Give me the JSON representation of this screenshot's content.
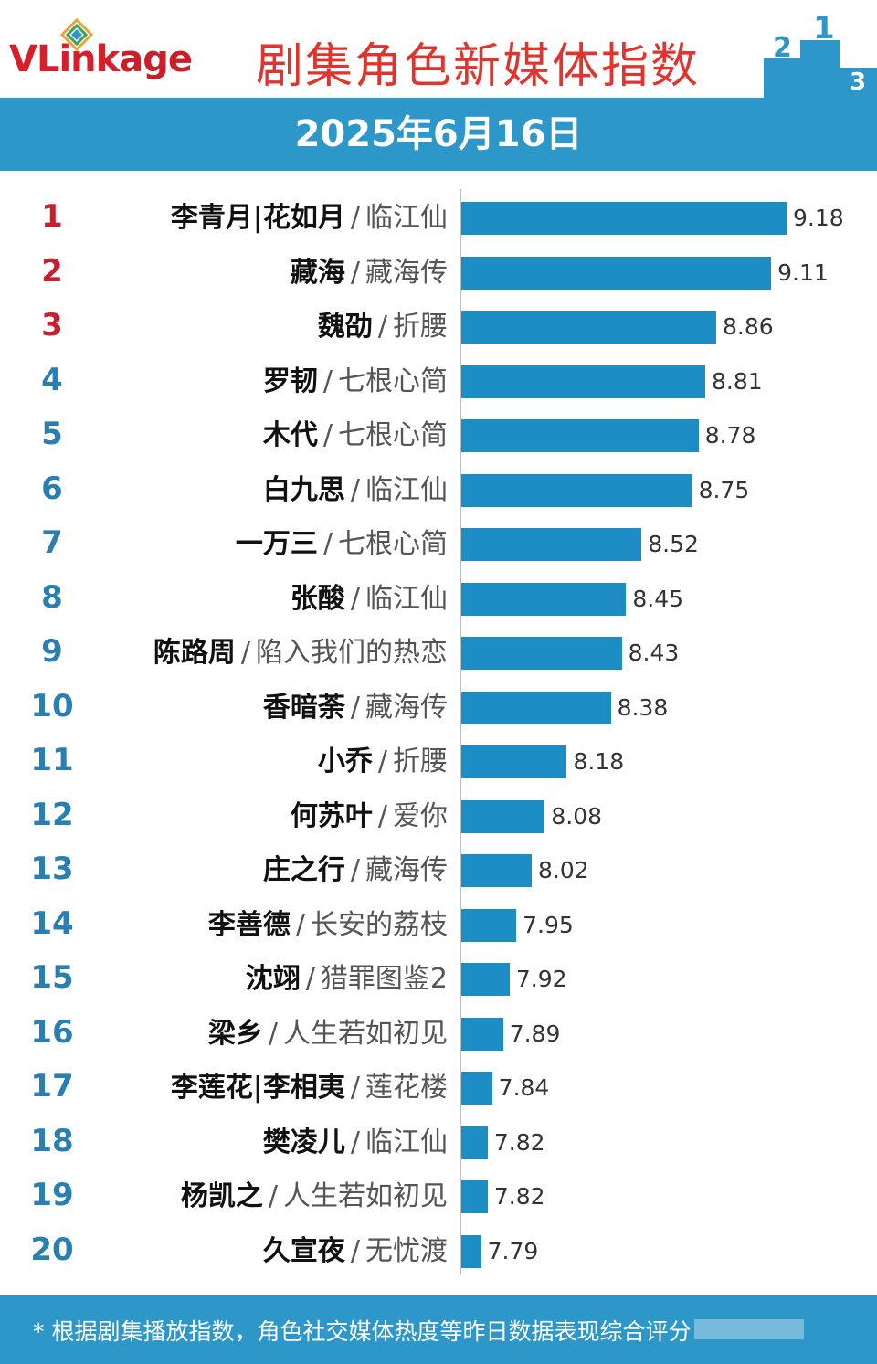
{
  "header": {
    "logo_text_v": "V",
    "logo_text_rest": "Link",
    "logo_text_age": "age",
    "title": "剧集角色新媒体指数"
  },
  "date": "2025年6月16日",
  "colors": {
    "bar": "#1c8dc5",
    "band": "#2e97c9",
    "title_red": "#e0342f",
    "top_rank_red": "#c81e2d",
    "rank_blue": "#2a7fb2"
  },
  "icons": {
    "logo": "vlinkage-diamond-logo",
    "podium": "podium-1-2-3-icon"
  },
  "chart_data": {
    "type": "bar",
    "orientation": "horizontal",
    "title": "剧集角色新媒体指数",
    "subtitle": "2025年6月16日",
    "ranks": [
      "1",
      "2",
      "3",
      "4",
      "5",
      "6",
      "7",
      "8",
      "9",
      "10",
      "11",
      "12",
      "13",
      "14",
      "15",
      "16",
      "17",
      "18",
      "19",
      "20"
    ],
    "characters": [
      "李青月|花如月",
      "藏海",
      "魏劭",
      "罗韧",
      "木代",
      "白九思",
      "一万三",
      "张酸",
      "陈路周",
      "香暗荼",
      "小乔",
      "何苏叶",
      "庄之行",
      "李善德",
      "沈翊",
      "梁乡",
      "李莲花|李相夷",
      "樊凌儿",
      "杨凯之",
      "久宣夜"
    ],
    "dramas": [
      "临江仙",
      "藏海传",
      "折腰",
      "七根心简",
      "七根心简",
      "临江仙",
      "七根心简",
      "临江仙",
      "陷入我们的热恋",
      "藏海传",
      "折腰",
      "爱你",
      "藏海传",
      "长安的荔枝",
      "猎罪图鉴2",
      "人生若如初见",
      "莲花楼",
      "临江仙",
      "人生若如初见",
      "无忧渡"
    ],
    "separator": "/",
    "values": [
      9.18,
      9.11,
      8.86,
      8.81,
      8.78,
      8.75,
      8.52,
      8.45,
      8.43,
      8.38,
      8.18,
      8.08,
      8.02,
      7.95,
      7.92,
      7.89,
      7.84,
      7.82,
      7.82,
      7.79
    ],
    "value_labels": [
      "9.18",
      "9.11",
      "8.86",
      "8.81",
      "8.78",
      "8.75",
      "8.52",
      "8.45",
      "8.43",
      "8.38",
      "8.18",
      "8.08",
      "8.02",
      "7.95",
      "7.92",
      "7.89",
      "7.84",
      "7.82",
      "7.82",
      "7.79"
    ],
    "xlim": [
      7.7,
      9.18
    ],
    "grid": false,
    "legend": "none"
  },
  "footer": {
    "note": "* 根据剧集播放指数，角色社交媒体热度等昨日数据表现综合评分"
  }
}
